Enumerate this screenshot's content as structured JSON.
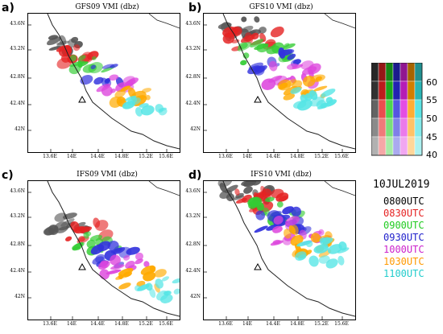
{
  "panels": [
    {
      "letter": "a)",
      "title": "GFS09 VMI (dbz)"
    },
    {
      "letter": "b)",
      "title": "GFS10 VMI (dbz)"
    },
    {
      "letter": "c)",
      "title": "IFS09 VMI (dbz)"
    },
    {
      "letter": "d)",
      "title": "IFS10 VMI (dbz)"
    }
  ],
  "axes": {
    "lat_labels": [
      "43.6N",
      "43.2N",
      "42.8N",
      "42.4N",
      "42N"
    ],
    "lon_labels": [
      "13.6E",
      "14E",
      "14.4E",
      "14.8E",
      "15.2E",
      "15.6E"
    ]
  },
  "colorbar": {
    "labels": [
      "60",
      "55",
      "50",
      "45",
      "40"
    ],
    "colors": [
      "#3c3c3c",
      "#e52222",
      "#22cc22",
      "#2a2ad8",
      "#dd22dd",
      "#ff9900",
      "#33dddd"
    ]
  },
  "legend": {
    "date": "10JUL2019",
    "items": [
      {
        "label": "0800UTC",
        "color": "#000000"
      },
      {
        "label": "0830UTC",
        "color": "#e52222"
      },
      {
        "label": "0900UTC",
        "color": "#22cc22"
      },
      {
        "label": "0930UTC",
        "color": "#2222cc"
      },
      {
        "label": "1000UTC",
        "color": "#cc22cc"
      },
      {
        "label": "1030UTC",
        "color": "#ff9900"
      },
      {
        "label": "1100UTC",
        "color": "#22cccc"
      }
    ]
  }
}
